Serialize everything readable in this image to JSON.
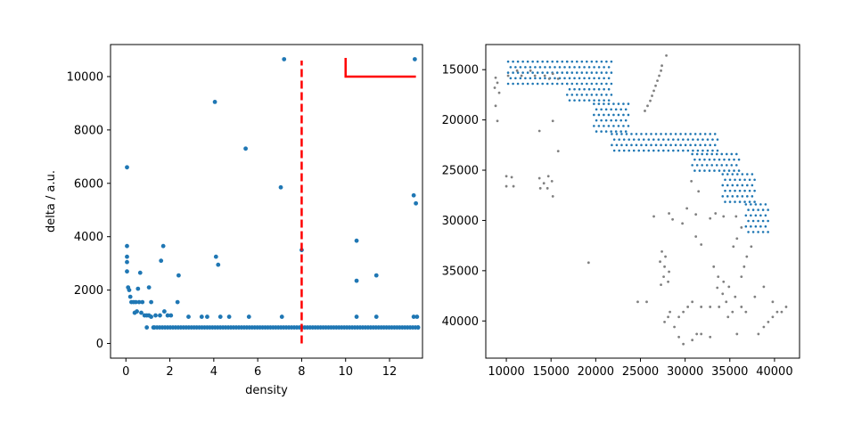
{
  "chart_data": [
    {
      "type": "scatter",
      "xlabel": "density",
      "ylabel": "delta / a.u.",
      "xlim": [
        -0.7,
        13.5
      ],
      "ylim": [
        -550,
        11200
      ],
      "x_ticks": [
        0,
        2,
        4,
        6,
        8,
        10,
        12
      ],
      "y_ticks": [
        0,
        2000,
        4000,
        6000,
        8000,
        10000
      ],
      "grid": false,
      "point_color": "#1f77b4",
      "series": [
        {
          "points": [
            [
              0.05,
              6600
            ],
            [
              0.05,
              3650
            ],
            [
              0.05,
              3250
            ],
            [
              0.05,
              3050
            ],
            [
              0.05,
              2700
            ],
            [
              0.1,
              2100
            ],
            [
              0.15,
              2000
            ],
            [
              0.2,
              1750
            ],
            [
              0.25,
              1550
            ],
            [
              0.35,
              1550
            ],
            [
              0.45,
              1550
            ],
            [
              0.6,
              1550
            ],
            [
              0.75,
              1550
            ],
            [
              0.5,
              1200
            ],
            [
              0.55,
              2050
            ],
            [
              0.65,
              2650
            ],
            [
              0.4,
              1150
            ],
            [
              0.7,
              1150
            ],
            [
              0.85,
              1050
            ],
            [
              0.95,
              1050
            ],
            [
              1.05,
              1050
            ],
            [
              1.15,
              1000
            ],
            [
              1.05,
              2100
            ],
            [
              1.15,
              1550
            ],
            [
              1.35,
              1050
            ],
            [
              1.55,
              1050
            ],
            [
              1.6,
              3100
            ],
            [
              1.7,
              3650
            ],
            [
              1.75,
              1200
            ],
            [
              1.9,
              1050
            ],
            [
              2.05,
              1050
            ],
            [
              2.35,
              1550
            ],
            [
              2.4,
              2550
            ],
            [
              2.85,
              1000
            ],
            [
              3.45,
              1000
            ],
            [
              3.7,
              1000
            ],
            [
              4.05,
              9050
            ],
            [
              4.1,
              3250
            ],
            [
              4.2,
              2950
            ],
            [
              4.3,
              1000
            ],
            [
              4.7,
              1000
            ],
            [
              5.45,
              7300
            ],
            [
              5.6,
              1000
            ],
            [
              7.05,
              5850
            ],
            [
              7.1,
              1000
            ],
            [
              7.2,
              10650
            ],
            [
              8.0,
              3500
            ],
            [
              10.5,
              3850
            ],
            [
              10.5,
              2350
            ],
            [
              10.5,
              1000
            ],
            [
              11.4,
              2550
            ],
            [
              11.4,
              1000
            ],
            [
              13.1,
              5550
            ],
            [
              13.2,
              5250
            ],
            [
              13.15,
              10650
            ],
            [
              13.1,
              1000
            ],
            [
              13.25,
              1000
            ],
            [
              0.95,
              600
            ],
            [
              1.25,
              600
            ],
            [
              13.3,
              600
            ]
          ],
          "baseline": {
            "y": 600,
            "x_from": 1.3,
            "x_to": 13.3,
            "step": 0.12
          }
        }
      ],
      "annotations": [
        {
          "type": "vertical-dashed-line",
          "x": 8,
          "y_range": [
            0,
            10600
          ],
          "color": "#ff0000"
        },
        {
          "type": "corner-marker",
          "x_range": [
            10,
            13.2
          ],
          "y_range": [
            10000,
            10700
          ],
          "color": "#ff0000"
        }
      ]
    },
    {
      "type": "scatter",
      "xlabel": "",
      "ylabel": "",
      "xlim": [
        7700,
        42800
      ],
      "ylim": [
        43700,
        12500
      ],
      "y_inverted": true,
      "x_ticks": [
        10000,
        15000,
        20000,
        25000,
        30000,
        35000,
        40000
      ],
      "y_ticks": [
        15000,
        20000,
        25000,
        30000,
        35000,
        40000
      ],
      "grid": false,
      "series": [
        {
          "color": "#1f77b4",
          "grid_bands": [
            {
              "y_from": 14200,
              "y_to": 16600,
              "x_from": 10200,
              "x_to": 16800
            },
            {
              "y_from": 14200,
              "y_to": 18400,
              "x_from": 16800,
              "x_to": 21800
            },
            {
              "y_from": 18400,
              "y_to": 21400,
              "x_from": 19800,
              "x_to": 23800
            },
            {
              "y_from": 21400,
              "y_to": 23400,
              "x_from": 21800,
              "x_to": 33800
            },
            {
              "y_from": 23400,
              "y_to": 25400,
              "x_from": 30800,
              "x_to": 36200
            },
            {
              "y_from": 25400,
              "y_to": 28400,
              "x_from": 34200,
              "x_to": 37800
            },
            {
              "y_from": 28400,
              "y_to": 31600,
              "x_from": 36800,
              "x_to": 39300
            }
          ],
          "grid_step": 550
        },
        {
          "color": "#808080",
          "points": [
            [
              27900,
              13600
            ],
            [
              27400,
              14600
            ],
            [
              27300,
              15100
            ],
            [
              27100,
              15600
            ],
            [
              26900,
              16100
            ],
            [
              26700,
              16600
            ],
            [
              26500,
              17100
            ],
            [
              26300,
              17600
            ],
            [
              26100,
              18100
            ],
            [
              25800,
              18600
            ],
            [
              25500,
              19100
            ],
            [
              8800,
              15800
            ],
            [
              9000,
              16300
            ],
            [
              8700,
              16800
            ],
            [
              9200,
              17300
            ],
            [
              8800,
              18600
            ],
            [
              9000,
              20100
            ],
            [
              10200,
              15600
            ],
            [
              11200,
              15100
            ],
            [
              11700,
              15600
            ],
            [
              12700,
              15100
            ],
            [
              13200,
              15600
            ],
            [
              14300,
              15600
            ],
            [
              15200,
              15400
            ],
            [
              15800,
              15900
            ],
            [
              14800,
              15900
            ],
            [
              13700,
              21100
            ],
            [
              15200,
              20100
            ],
            [
              15800,
              23100
            ],
            [
              13700,
              25800
            ],
            [
              14200,
              26300
            ],
            [
              13800,
              26800
            ],
            [
              14700,
              25600
            ],
            [
              15100,
              26100
            ],
            [
              14600,
              26800
            ],
            [
              15200,
              27600
            ],
            [
              10000,
              25600
            ],
            [
              10000,
              26600
            ],
            [
              10800,
              26600
            ],
            [
              10600,
              25700
            ],
            [
              19200,
              34200
            ],
            [
              26500,
              29600
            ],
            [
              28200,
              29300
            ],
            [
              28600,
              29900
            ],
            [
              29700,
              30300
            ],
            [
              30700,
              26100
            ],
            [
              31500,
              27100
            ],
            [
              30200,
              28800
            ],
            [
              31200,
              29400
            ],
            [
              32800,
              29800
            ],
            [
              33400,
              29300
            ],
            [
              34300,
              29600
            ],
            [
              35700,
              29600
            ],
            [
              36300,
              30700
            ],
            [
              35800,
              31800
            ],
            [
              35400,
              32600
            ],
            [
              27400,
              33100
            ],
            [
              27800,
              33600
            ],
            [
              27200,
              34100
            ],
            [
              27700,
              34600
            ],
            [
              28200,
              35100
            ],
            [
              27600,
              35600
            ],
            [
              28100,
              36100
            ],
            [
              27300,
              36400
            ],
            [
              31200,
              31600
            ],
            [
              31800,
              32400
            ],
            [
              33200,
              34600
            ],
            [
              33700,
              35600
            ],
            [
              34300,
              36100
            ],
            [
              33600,
              36700
            ],
            [
              34200,
              37300
            ],
            [
              34600,
              38100
            ],
            [
              35600,
              37600
            ],
            [
              34900,
              36600
            ],
            [
              36300,
              35600
            ],
            [
              36600,
              34600
            ],
            [
              36900,
              33600
            ],
            [
              37400,
              32600
            ],
            [
              24700,
              38100
            ],
            [
              25700,
              38100
            ],
            [
              28300,
              39100
            ],
            [
              28100,
              39600
            ],
            [
              27700,
              40100
            ],
            [
              28800,
              40600
            ],
            [
              29300,
              39600
            ],
            [
              29800,
              39100
            ],
            [
              30300,
              38600
            ],
            [
              30800,
              38100
            ],
            [
              31800,
              38600
            ],
            [
              32800,
              38600
            ],
            [
              33800,
              38600
            ],
            [
              35300,
              39100
            ],
            [
              34800,
              39600
            ],
            [
              36300,
              38600
            ],
            [
              36800,
              39100
            ],
            [
              29300,
              41600
            ],
            [
              29800,
              42300
            ],
            [
              30800,
              41900
            ],
            [
              31300,
              41300
            ],
            [
              31800,
              41300
            ],
            [
              32800,
              41600
            ],
            [
              35800,
              41300
            ],
            [
              38200,
              41300
            ],
            [
              38800,
              40600
            ],
            [
              39300,
              40100
            ],
            [
              39800,
              39600
            ],
            [
              40300,
              39100
            ],
            [
              40800,
              39100
            ],
            [
              41300,
              38600
            ],
            [
              39800,
              38100
            ],
            [
              37800,
              37600
            ],
            [
              38800,
              36600
            ]
          ]
        }
      ]
    }
  ]
}
